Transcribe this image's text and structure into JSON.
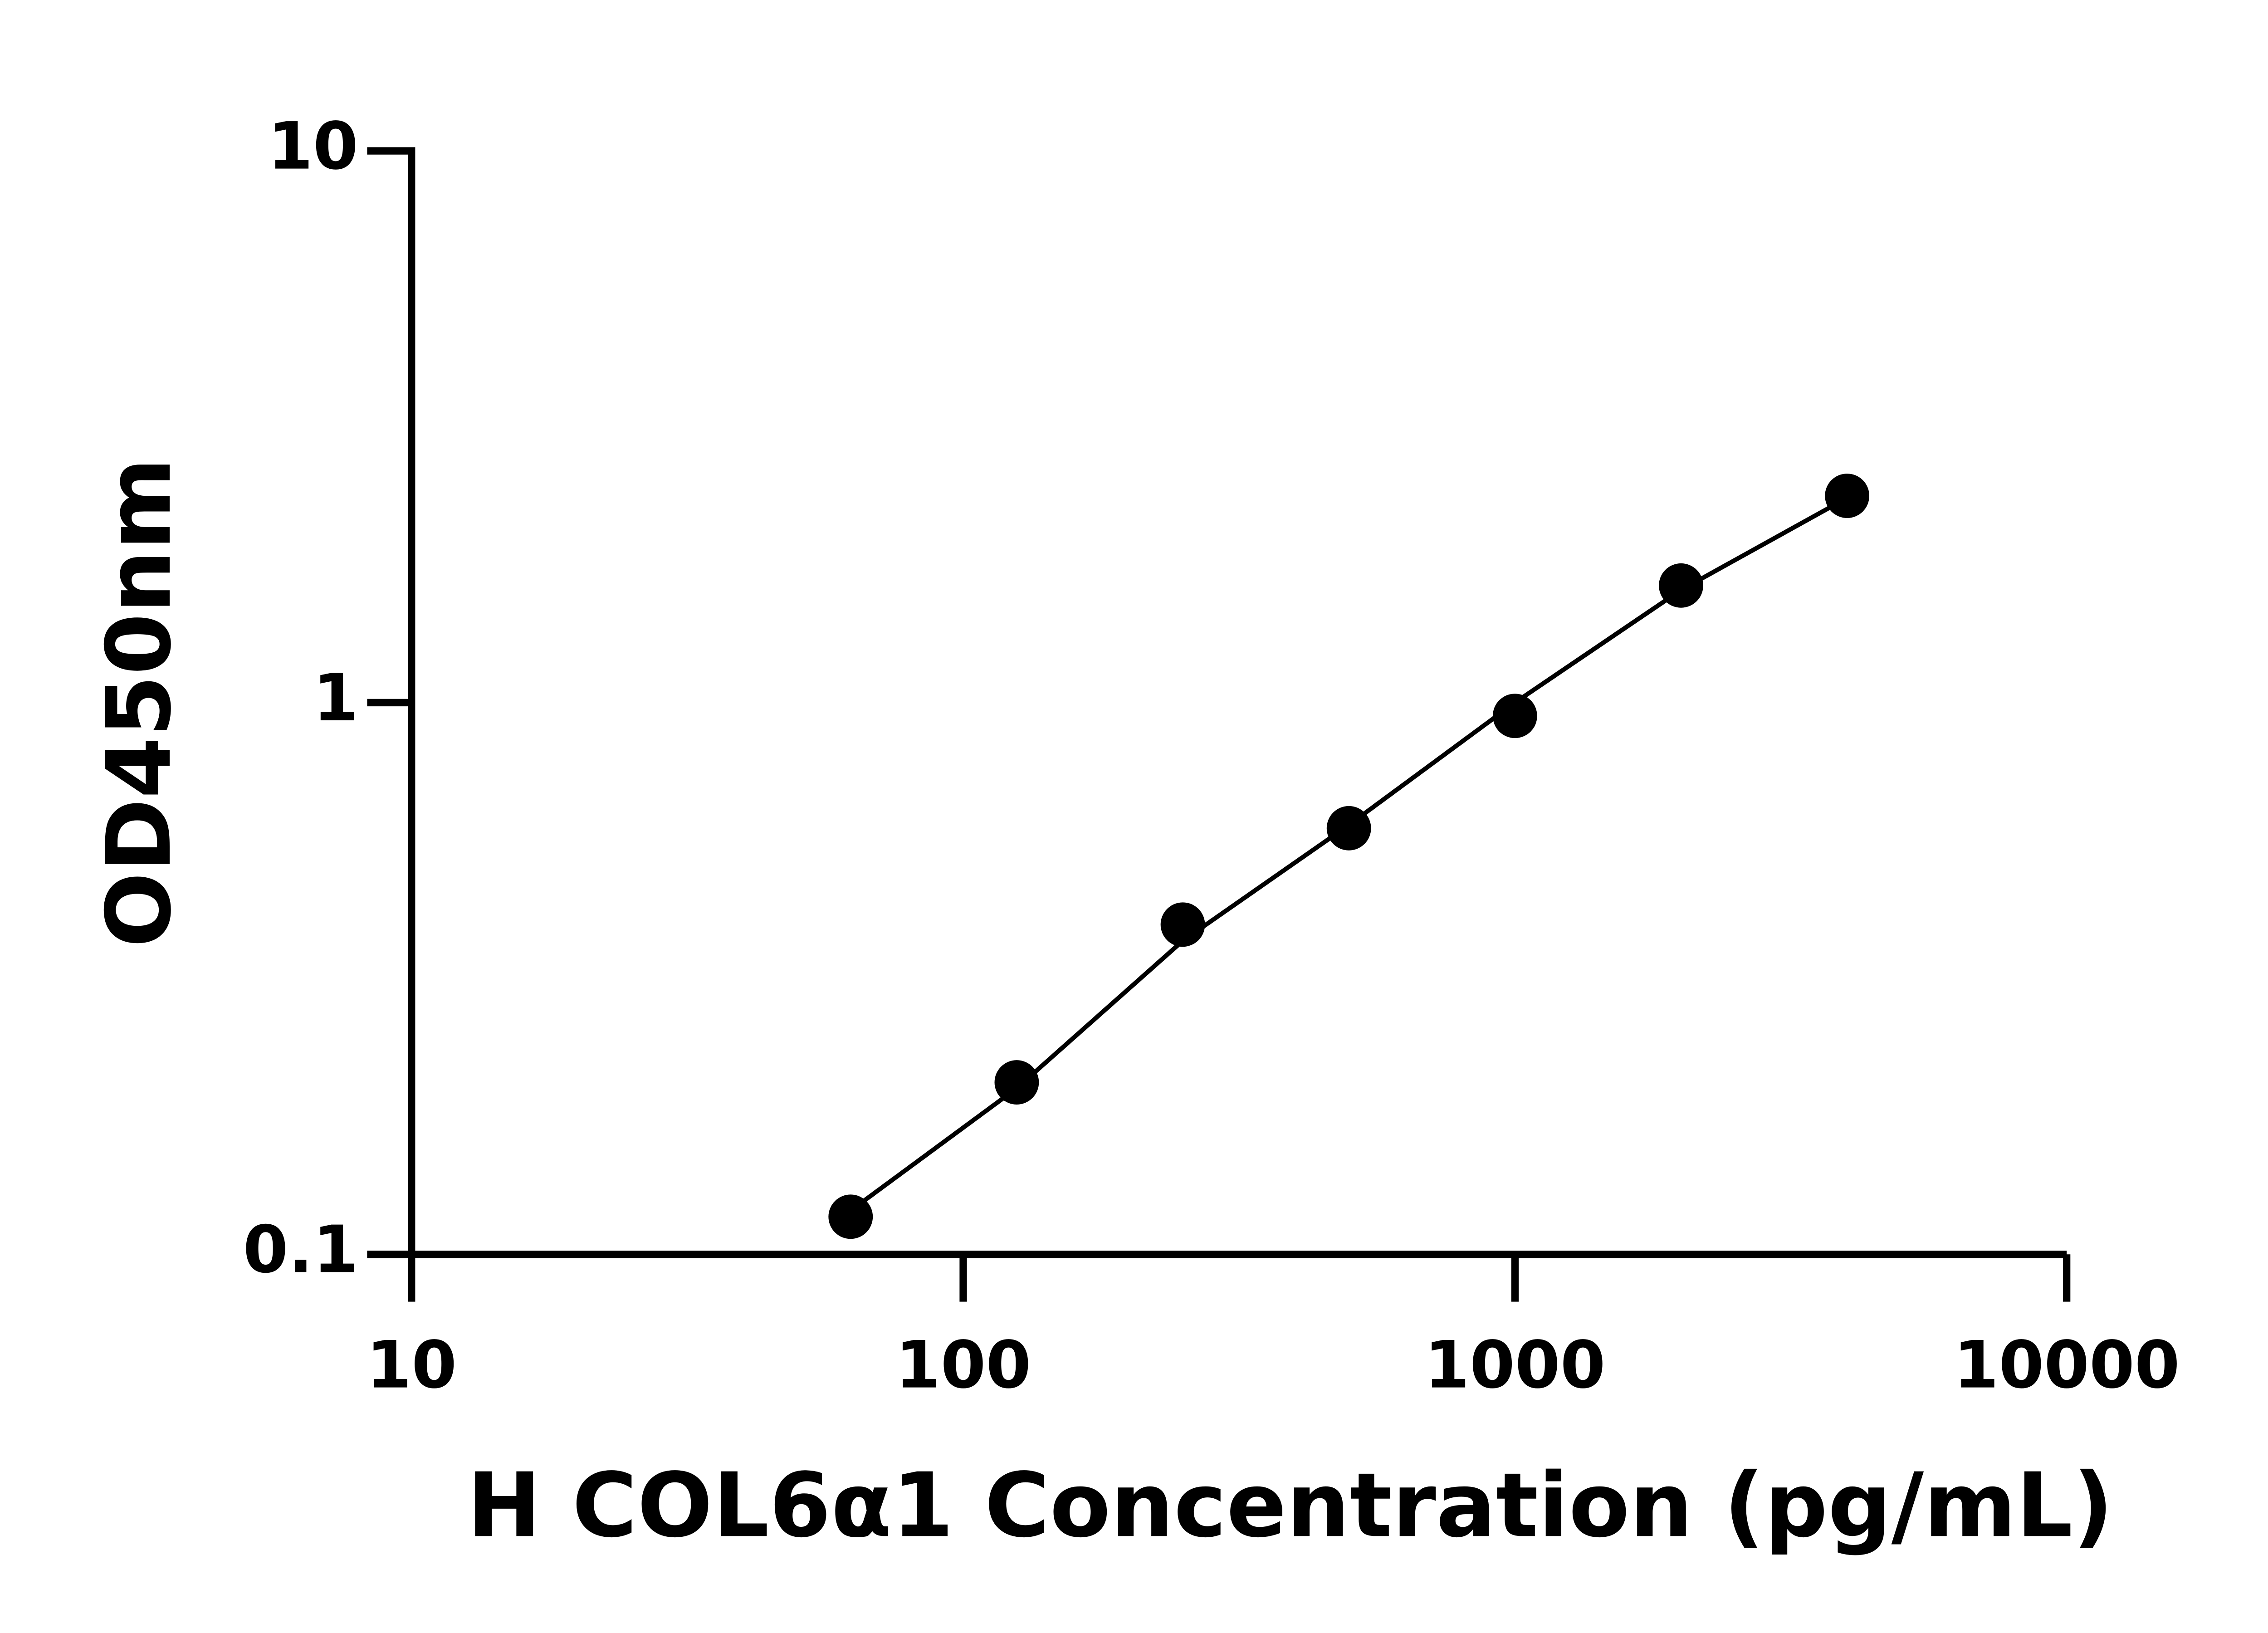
{
  "chart_data": {
    "type": "scatter",
    "x_label": "H COL6α1 Concentration (pg/mL)",
    "y_label": "OD450nm",
    "x": [
      62.5,
      125,
      250,
      500,
      1000,
      2000,
      4000
    ],
    "values": [
      0.117,
      0.205,
      0.396,
      0.592,
      0.946,
      1.63,
      2.37
    ],
    "fit": {
      "values": [
        0.12,
        0.2,
        0.37,
        0.6,
        1.0,
        1.6,
        2.35
      ]
    },
    "color": "#000000",
    "log_x": true,
    "log_y": true,
    "xlim": [
      10,
      10000
    ],
    "xticks": [
      10,
      100,
      1000,
      10000
    ],
    "ylim": [
      0.1,
      10
    ],
    "yticks": [
      0.1,
      1,
      10
    ]
  }
}
